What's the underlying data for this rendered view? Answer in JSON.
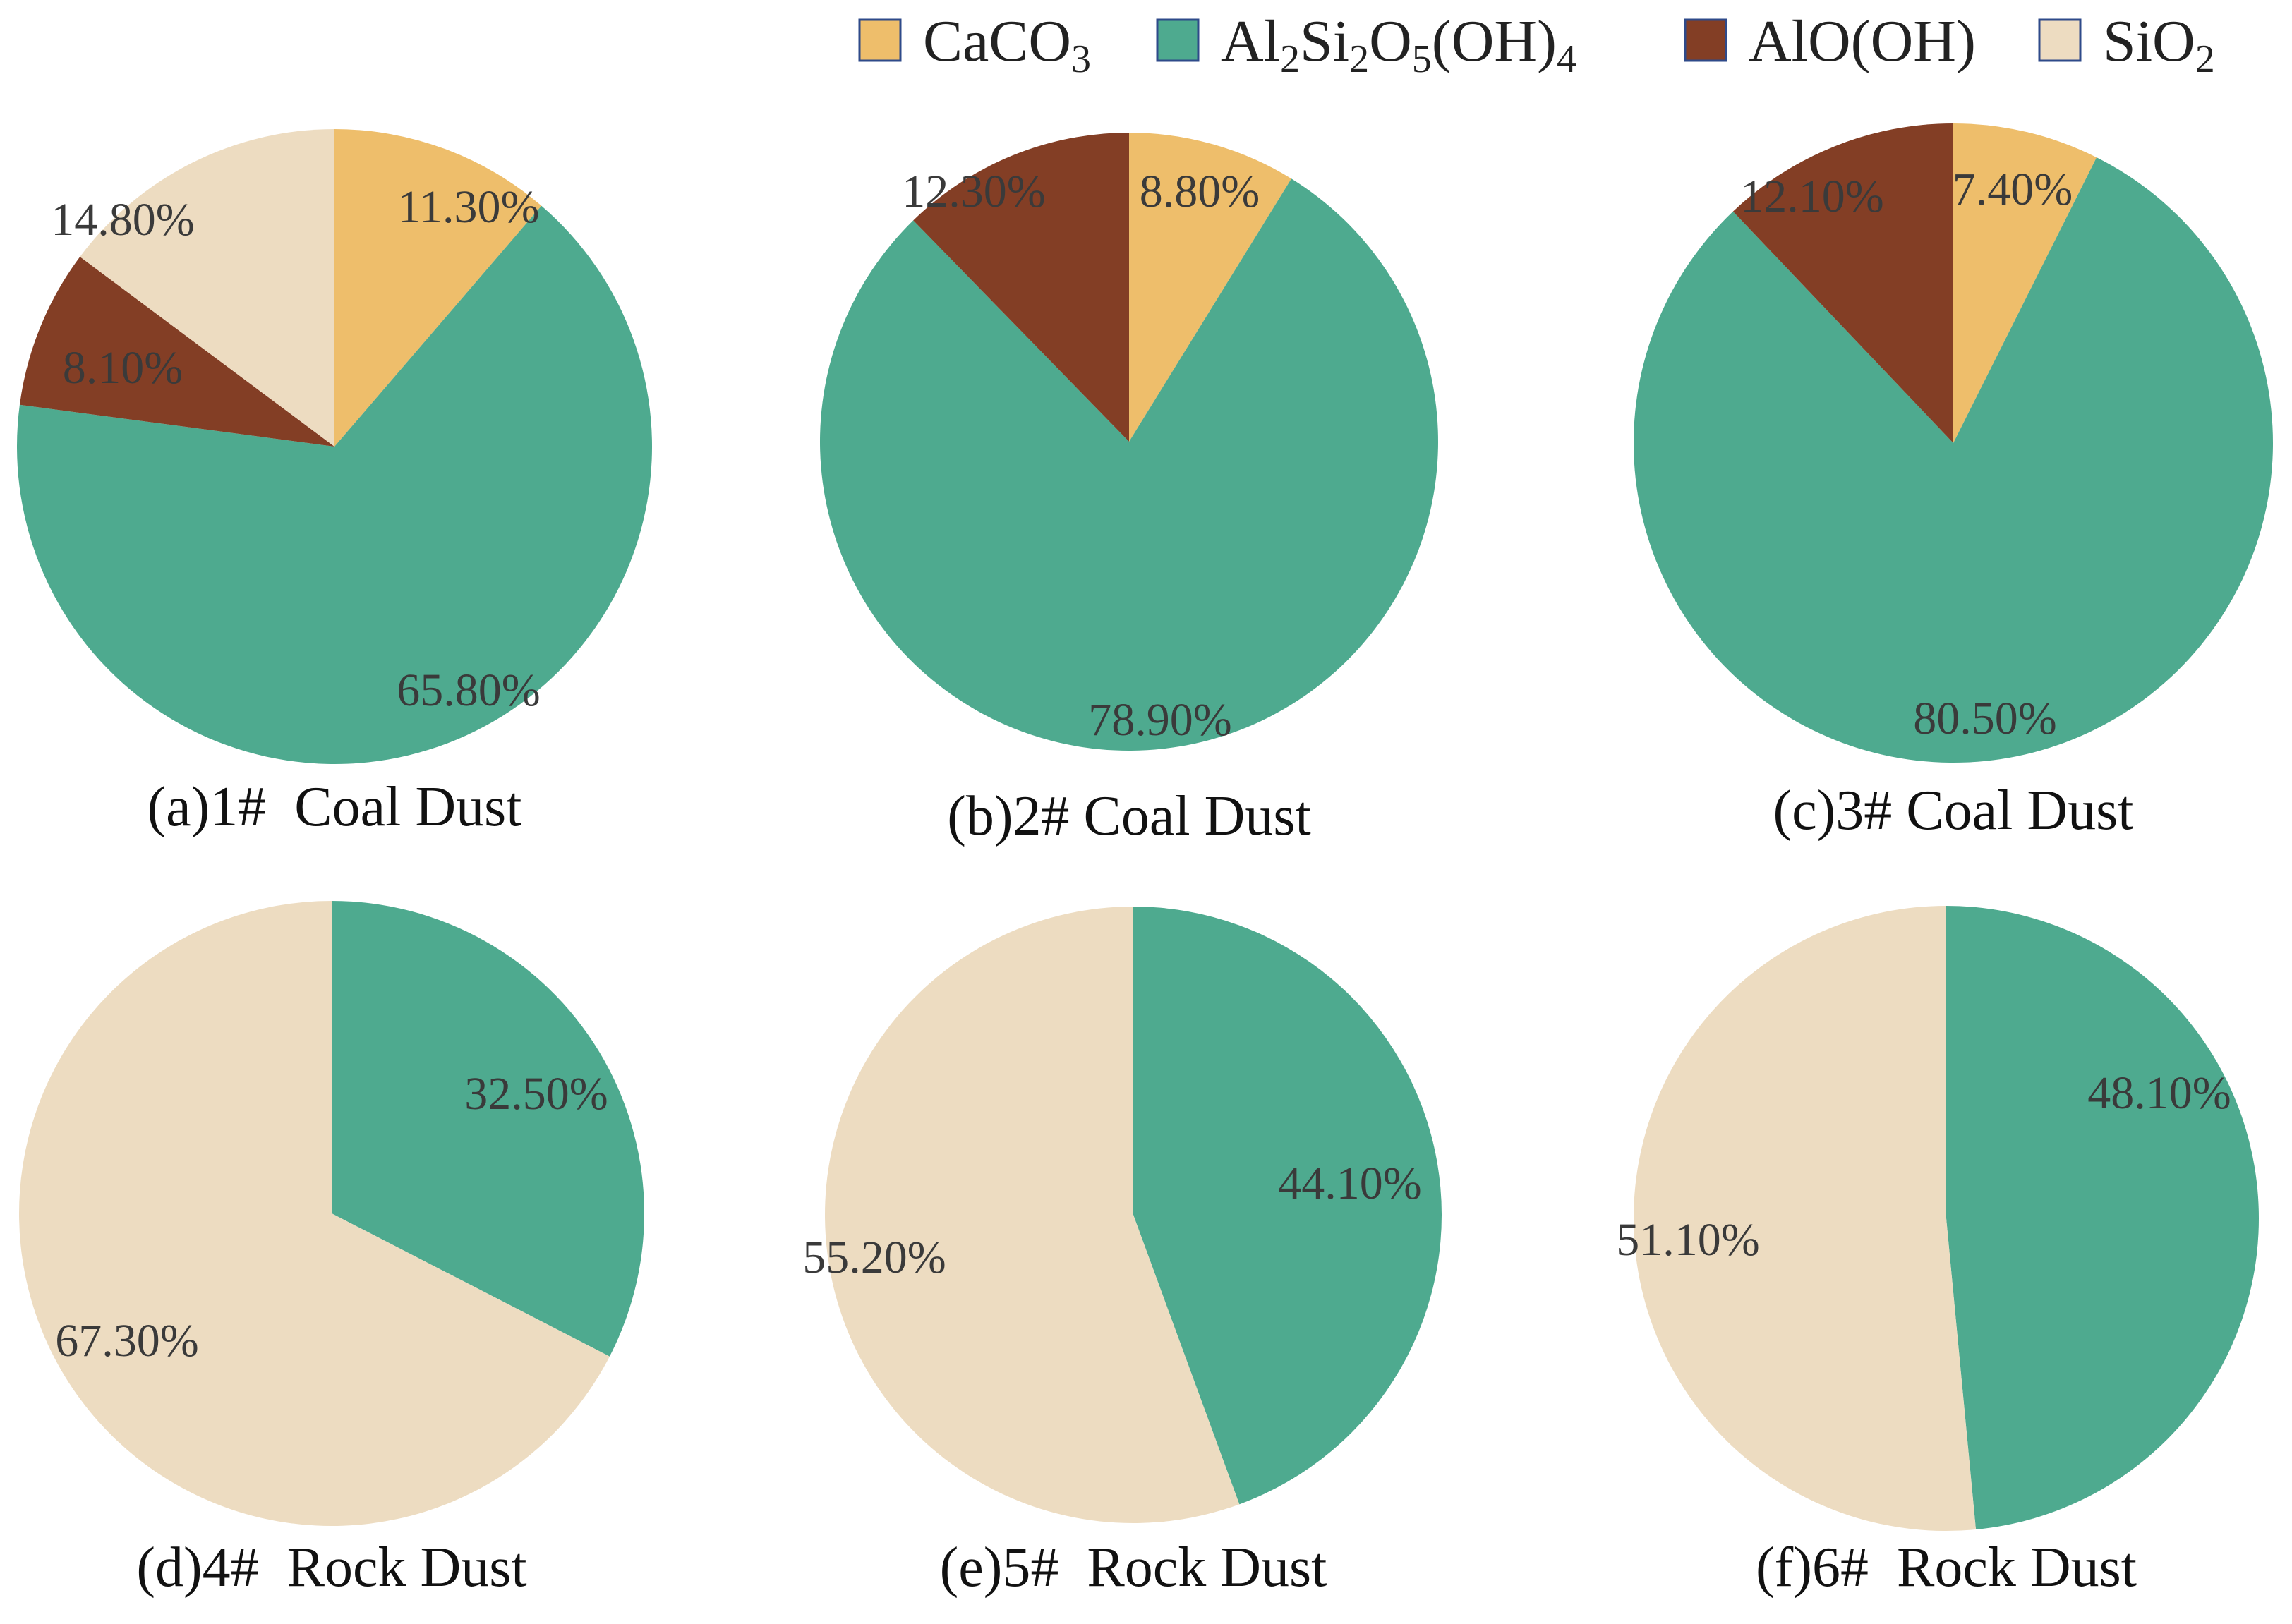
{
  "chart_data": {
    "type": "pie",
    "start_angle": "12 o'clock",
    "direction": "clockwise",
    "legend": {
      "position": "top-right",
      "entries": [
        {
          "key": "CaCO3",
          "parts": [
            {
              "t": "CaCO"
            },
            {
              "t": "3",
              "sub": true
            }
          ],
          "color": "#EEBE6B"
        },
        {
          "key": "Al2Si2O5(OH)4",
          "parts": [
            {
              "t": "Al"
            },
            {
              "t": "2",
              "sub": true
            },
            {
              "t": "Si"
            },
            {
              "t": "2",
              "sub": true
            },
            {
              "t": "O"
            },
            {
              "t": "5",
              "sub": true
            },
            {
              "t": "(OH)"
            },
            {
              "t": "4",
              "sub": true
            }
          ],
          "color": "#4EAA8F"
        },
        {
          "key": "AlO(OH)",
          "parts": [
            {
              "t": "AlO(OH)"
            }
          ],
          "color": "#833E25"
        },
        {
          "key": "SiO2",
          "parts": [
            {
              "t": "SiO"
            },
            {
              "t": "2",
              "sub": true
            }
          ],
          "color": "#EDDCC1"
        }
      ]
    },
    "pies": [
      {
        "title": "(a)1#  Coal Dust",
        "slices": [
          {
            "key": "CaCO3",
            "value": 11.3,
            "label": "11.30%"
          },
          {
            "key": "Al2Si2O5(OH)4",
            "value": 65.8,
            "label": "65.80%"
          },
          {
            "key": "AlO(OH)",
            "value": 8.1,
            "label": "8.10%"
          },
          {
            "key": "SiO2",
            "value": 14.8,
            "label": "14.80%"
          }
        ]
      },
      {
        "title": "(b)2# Coal Dust",
        "slices": [
          {
            "key": "CaCO3",
            "value": 8.8,
            "label": "8.80%"
          },
          {
            "key": "Al2Si2O5(OH)4",
            "value": 78.9,
            "label": "78.90%"
          },
          {
            "key": "AlO(OH)",
            "value": 12.3,
            "label": "12.30%"
          }
        ]
      },
      {
        "title": "(c)3# Coal Dust",
        "slices": [
          {
            "key": "CaCO3",
            "value": 7.4,
            "label": "7.40%"
          },
          {
            "key": "Al2Si2O5(OH)4",
            "value": 80.5,
            "label": "80.50%"
          },
          {
            "key": "AlO(OH)",
            "value": 12.1,
            "label": "12.10%"
          }
        ]
      },
      {
        "title": "(d)4#  Rock Dust",
        "slices": [
          {
            "key": "Al2Si2O5(OH)4",
            "value": 32.5,
            "label": "32.50%"
          },
          {
            "key": "SiO2",
            "value": 67.3,
            "label": "67.30%"
          }
        ]
      },
      {
        "title": "(e)5#  Rock Dust",
        "slices": [
          {
            "key": "Al2Si2O5(OH)4",
            "value": 44.1,
            "label": "44.10%"
          },
          {
            "key": "SiO2",
            "value": 55.2,
            "label": "55.20%"
          }
        ]
      },
      {
        "title": "(f)6#  Rock Dust",
        "slices": [
          {
            "key": "Al2Si2O5(OH)4",
            "value": 48.1,
            "label": "48.10%"
          },
          {
            "key": "SiO2",
            "value": 51.1,
            "label": "51.10%"
          }
        ]
      }
    ]
  }
}
